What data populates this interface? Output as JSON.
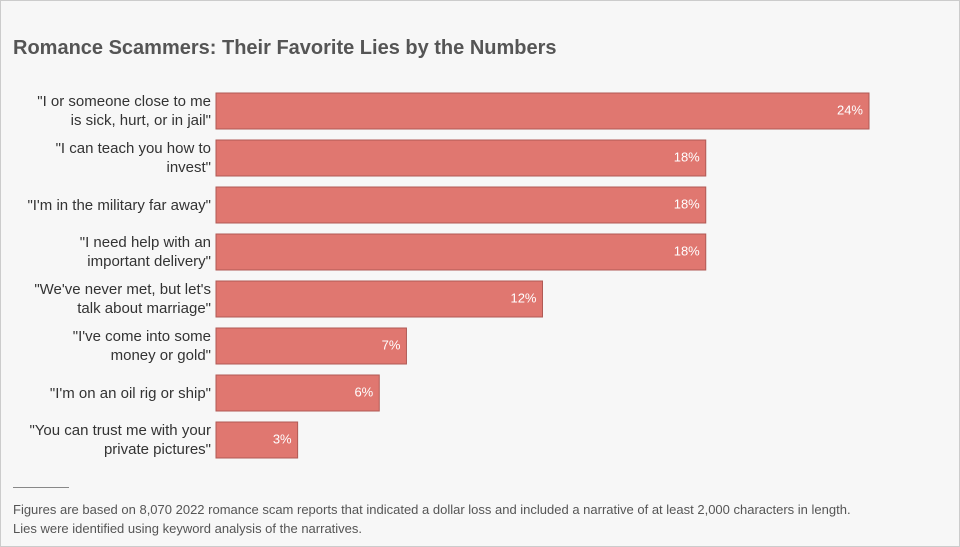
{
  "chart_data": {
    "type": "bar",
    "orientation": "horizontal",
    "title": "Romance Scammers: Their Favorite Lies by the Numbers",
    "categories": [
      "\"I or someone close to me\nis sick, hurt, or in jail\"",
      "\"I can teach you how to\ninvest\"",
      "\"I'm in the military far away\"",
      "\"I need help with an\nimportant delivery\"",
      "\"We've never met, but let's\ntalk about marriage\"",
      "\"I've come into some\nmoney or gold\"",
      "\"I'm on an oil rig or ship\"",
      "\"You can trust me with your\nprivate pictures\""
    ],
    "values": [
      24,
      18,
      18,
      18,
      12,
      7,
      6,
      3
    ],
    "value_labels": [
      "24%",
      "18%",
      "18%",
      "18%",
      "12%",
      "7%",
      "6%",
      "3%"
    ],
    "color": "#e07770",
    "note": "Figures are based on 8,070 2022 romance scam reports that indicated a dollar loss and included a narrative of at least 2,000 characters in length.\nLies were identified using keyword analysis of the narratives."
  }
}
